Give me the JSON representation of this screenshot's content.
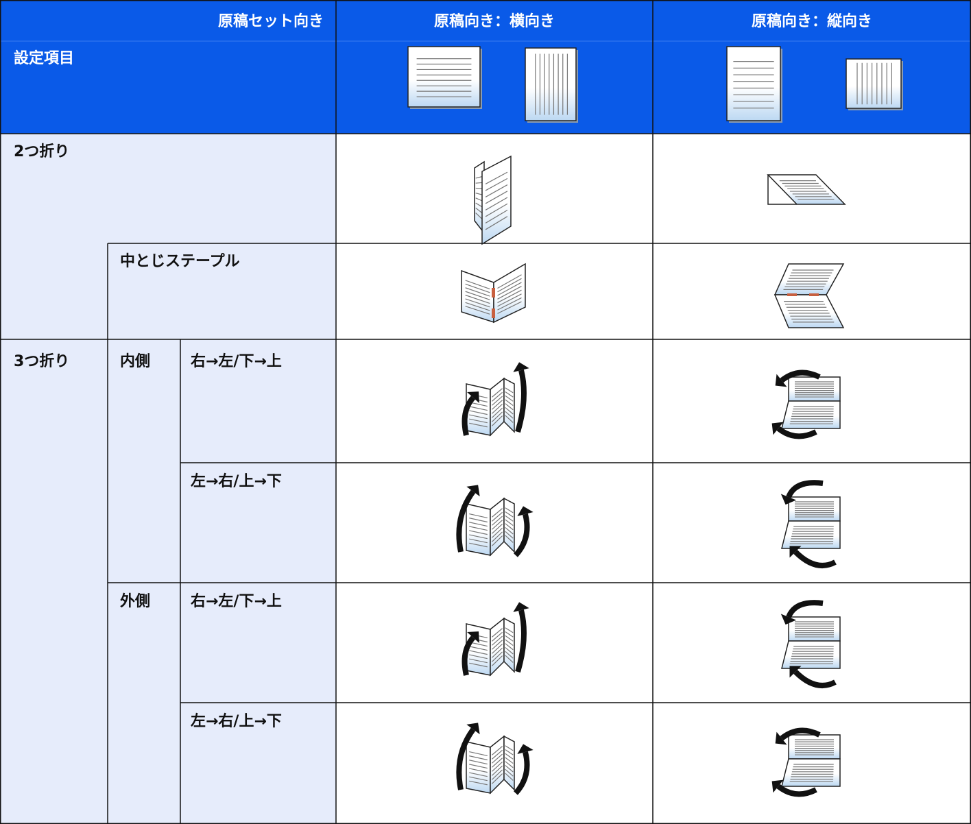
{
  "header": {
    "set_direction": "原稿セット向き",
    "setting_item": "設定項目",
    "columns": [
      "原稿向き：横向き",
      "原稿向き：縦向き"
    ]
  },
  "rows": [
    {
      "group": "2つ折り"
    },
    {
      "sub": "中とじステープル"
    },
    {
      "group": "3つ折り",
      "side": "内側",
      "direction": "右→左/下→上"
    },
    {
      "direction": "左→右/上→下"
    },
    {
      "side": "外側",
      "direction": "右→左/下→上"
    },
    {
      "direction": "左→右/上→下"
    }
  ]
}
